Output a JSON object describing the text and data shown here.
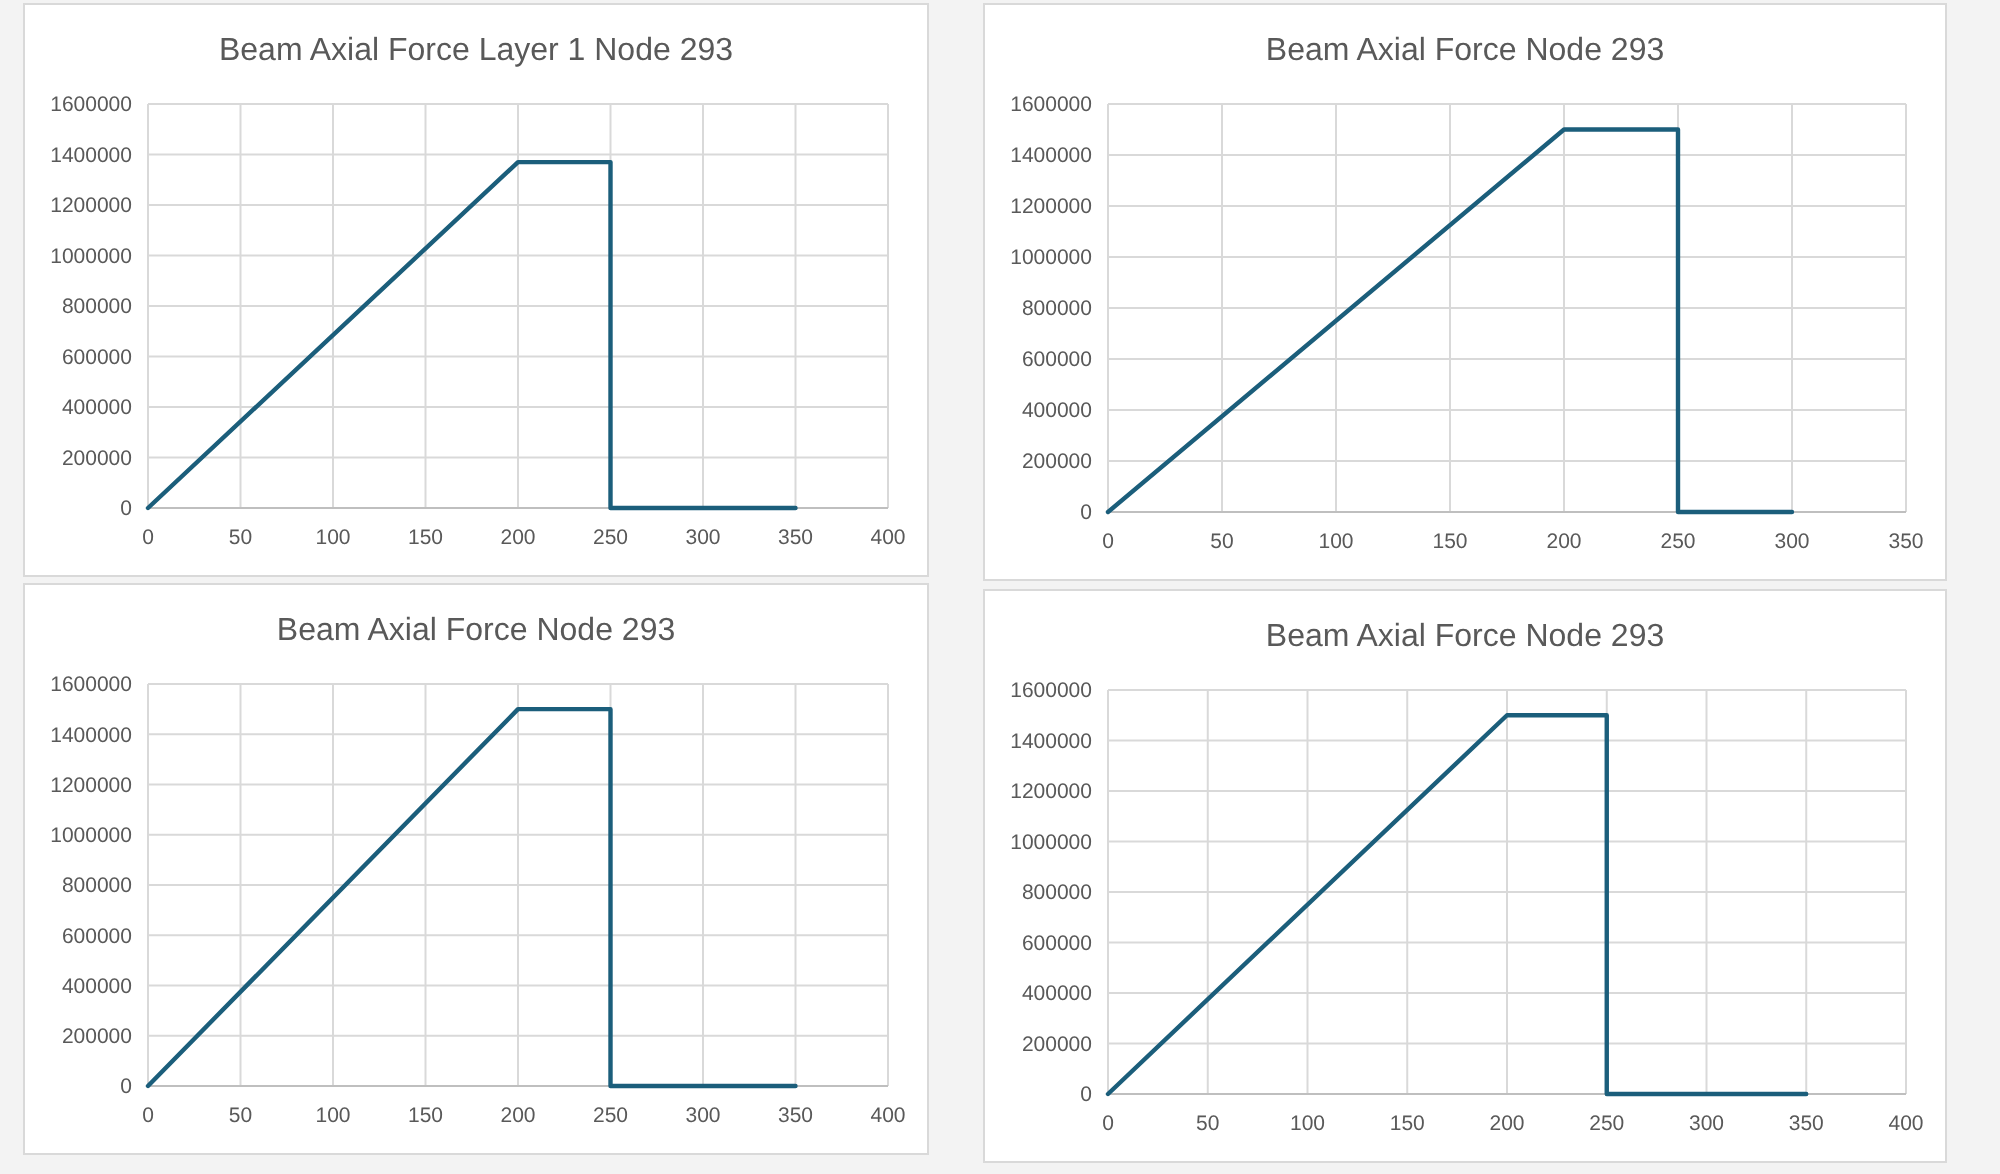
{
  "chart_data": [
    {
      "type": "line",
      "title": "Beam Axial Force Layer 1 Node 293",
      "x": [
        0,
        200,
        250,
        250,
        350
      ],
      "series": [
        {
          "color": "#1b5e7b",
          "values": [
            0,
            1370000,
            1370000,
            0,
            0
          ]
        }
      ],
      "xlim": [
        0,
        400
      ],
      "xticks": [
        0,
        50,
        100,
        150,
        200,
        250,
        300,
        350,
        400
      ],
      "ylim": [
        0,
        1600000
      ],
      "yticks": [
        0,
        200000,
        400000,
        600000,
        800000,
        1000000,
        1200000,
        1400000,
        1600000
      ],
      "grid": true
    },
    {
      "type": "line",
      "title": "Beam Axial Force Node 293",
      "x": [
        0,
        200,
        250,
        250,
        300
      ],
      "series": [
        {
          "color": "#1b5e7b",
          "values": [
            0,
            1500000,
            1500000,
            0,
            0
          ]
        }
      ],
      "xlim": [
        0,
        350
      ],
      "xticks": [
        0,
        50,
        100,
        150,
        200,
        250,
        300,
        350
      ],
      "ylim": [
        0,
        1600000
      ],
      "yticks": [
        0,
        200000,
        400000,
        600000,
        800000,
        1000000,
        1200000,
        1400000,
        1600000
      ],
      "grid": true
    },
    {
      "type": "line",
      "title": "Beam Axial Force Node 293",
      "x": [
        0,
        200,
        250,
        250,
        350
      ],
      "series": [
        {
          "color": "#1b5e7b",
          "values": [
            0,
            1500000,
            1500000,
            0,
            0
          ]
        }
      ],
      "xlim": [
        0,
        400
      ],
      "xticks": [
        0,
        50,
        100,
        150,
        200,
        250,
        300,
        350,
        400
      ],
      "ylim": [
        0,
        1600000
      ],
      "yticks": [
        0,
        200000,
        400000,
        600000,
        800000,
        1000000,
        1200000,
        1400000,
        1600000
      ],
      "grid": true
    },
    {
      "type": "line",
      "title": "Beam Axial Force Node 293",
      "x": [
        0,
        200,
        250,
        250,
        350
      ],
      "series": [
        {
          "color": "#1b5e7b",
          "values": [
            0,
            1500000,
            1500000,
            0,
            0
          ]
        }
      ],
      "xlim": [
        0,
        400
      ],
      "xticks": [
        0,
        50,
        100,
        150,
        200,
        250,
        300,
        350,
        400
      ],
      "ylim": [
        0,
        1600000
      ],
      "yticks": [
        0,
        200000,
        400000,
        600000,
        800000,
        1000000,
        1200000,
        1400000,
        1600000
      ],
      "grid": true
    }
  ]
}
